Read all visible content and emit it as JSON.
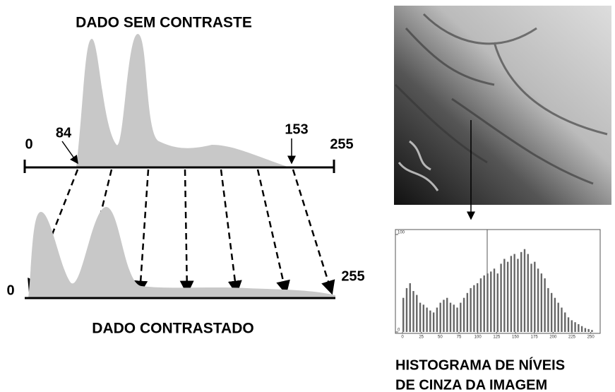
{
  "top": {
    "title": "DADO SEM CONTRASTE",
    "min_label": "0",
    "low_label": "84",
    "high_label": "153",
    "max_label": "255"
  },
  "bottom": {
    "title": "DADO CONTRASTADO",
    "min_label": "0",
    "max_label": "255"
  },
  "histogram": {
    "caption_line1": "HISTOGRAMA DE NÍVEIS",
    "caption_line2": "DE CINZA DA IMAGEM",
    "ylim": [
      0,
      100
    ],
    "yticks": [
      0,
      100
    ],
    "xlim": [
      0,
      255
    ],
    "xticks": [
      0,
      25,
      50,
      75,
      100,
      125,
      150,
      175,
      200,
      225,
      250
    ],
    "counts": [
      35,
      45,
      50,
      42,
      38,
      30,
      28,
      25,
      22,
      20,
      25,
      30,
      33,
      35,
      30,
      28,
      25,
      30,
      35,
      40,
      45,
      48,
      50,
      55,
      58,
      60,
      62,
      65,
      60,
      70,
      75,
      72,
      78,
      80,
      75,
      82,
      85,
      80,
      70,
      72,
      65,
      60,
      55,
      45,
      40,
      35,
      30,
      25,
      20,
      15,
      12,
      10,
      8,
      6,
      4,
      3,
      2
    ]
  }
}
